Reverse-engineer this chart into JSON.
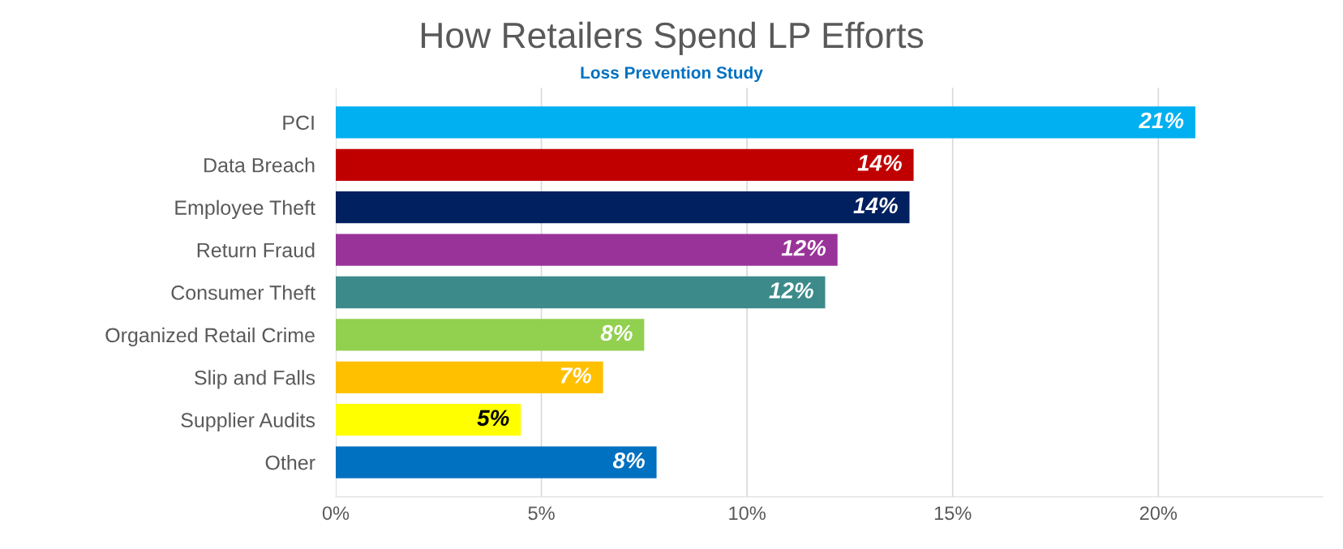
{
  "chart_data": {
    "type": "bar",
    "orientation": "horizontal",
    "title": "How Retailers Spend LP Efforts",
    "subtitle": "Loss Prevention Study",
    "categories": [
      "PCI",
      "Data Breach",
      "Employee Theft",
      "Return Fraud",
      "Consumer Theft",
      "Organized Retail Crime",
      "Slip and Falls",
      "Supplier Audits",
      "Other"
    ],
    "values": [
      20.9,
      14.05,
      13.95,
      12.2,
      11.9,
      7.5,
      6.5,
      4.5,
      7.8
    ],
    "colors": [
      "#00b0f0",
      "#c00000",
      "#002060",
      "#993399",
      "#3d8a8a",
      "#92d050",
      "#ffc000",
      "#ffff00",
      "#0070c0"
    ],
    "value_labels": [
      "21%",
      "14%",
      "14%",
      "12%",
      "12%",
      "8%",
      "7%",
      "5%",
      "8%"
    ],
    "xlim": [
      0,
      24
    ],
    "xticks": [
      {
        "value": 0,
        "label": "0%"
      },
      {
        "value": 5,
        "label": "5%"
      },
      {
        "value": 10,
        "label": "10%"
      },
      {
        "value": 15,
        "label": "15%"
      },
      {
        "value": 20,
        "label": "20%"
      }
    ],
    "grid": "x",
    "legend": false
  }
}
